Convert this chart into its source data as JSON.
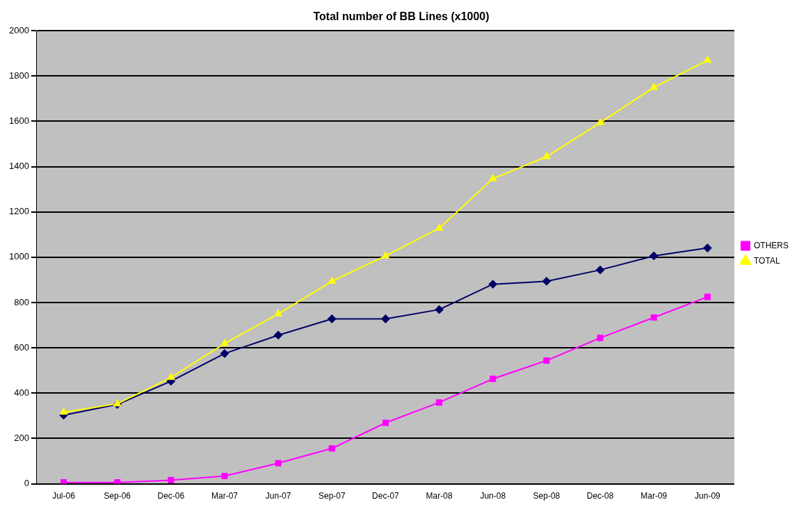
{
  "chart_data": {
    "type": "line",
    "title": "Total number of BB Lines (x1000)",
    "categories": [
      "Jul-06",
      "Sep-06",
      "Dec-06",
      "Mar-07",
      "Jun-07",
      "Sep-07",
      "Dec-07",
      "Mar-08",
      "Jun-08",
      "Sep-08",
      "Dec-08",
      "Mar-09",
      "Jun-09"
    ],
    "series": [
      {
        "color": "#000066",
        "marker": "diamond",
        "values": [
          303,
          350,
          453,
          575,
          656,
          728,
          728,
          769,
          881,
          894,
          944,
          1006,
          1041
        ]
      },
      {
        "name": "OTHERS",
        "color": "#ff00ff",
        "marker": "square",
        "values": [
          6,
          6,
          16,
          34,
          91,
          156,
          269,
          359,
          463,
          544,
          644,
          734,
          825
        ]
      },
      {
        "name": "TOTAL",
        "color": "#ffff00",
        "marker": "triangle",
        "values": [
          316,
          353,
          469,
          619,
          750,
          894,
          1006,
          1128,
          1347,
          1444,
          1594,
          1750,
          1869
        ]
      }
    ],
    "ylim": [
      0,
      2000
    ],
    "yticks": [
      0,
      200,
      400,
      600,
      800,
      1000,
      1200,
      1400,
      1600,
      1800,
      2000
    ],
    "grid": "y",
    "legend": "right"
  }
}
